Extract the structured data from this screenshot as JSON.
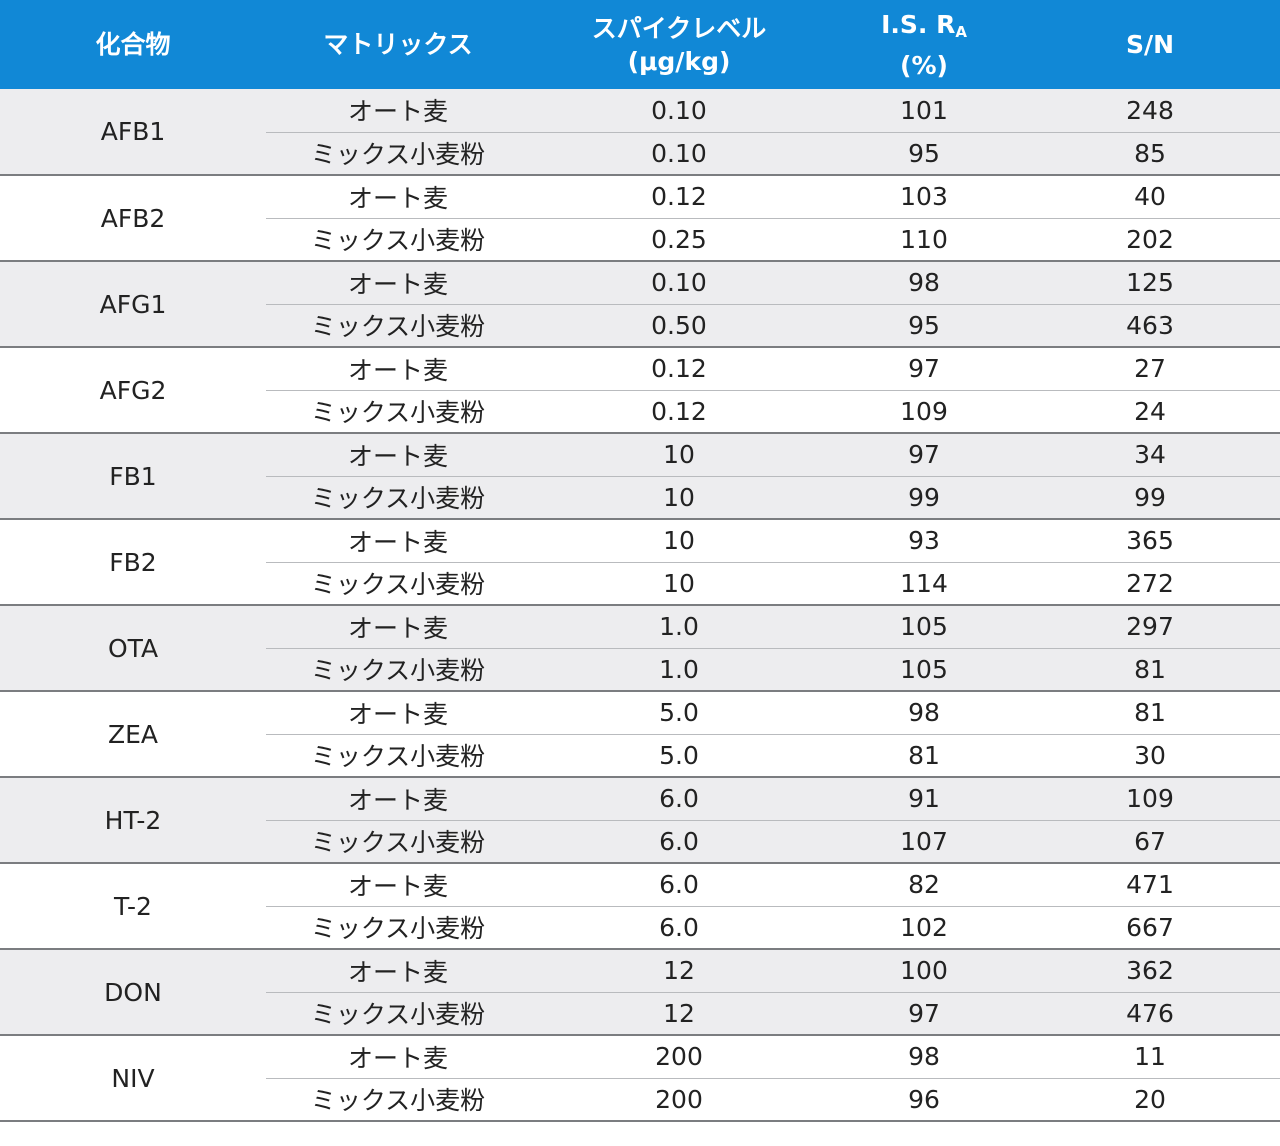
{
  "table": {
    "headers": {
      "compound": "化合物",
      "matrix": "マトリックス",
      "spike_level": "スパイクレベル",
      "spike_unit": "(μg/kg)",
      "is_ra": "I.S. R",
      "is_ra_sub": "A",
      "is_ra_unit": "(%)",
      "sn": "S/N"
    },
    "rows": [
      {
        "compound": "AFB1",
        "entries": [
          {
            "matrix": "オート麦",
            "spike": "0.10",
            "ra": "101",
            "sn": "248"
          },
          {
            "matrix": "ミックス小麦粉",
            "spike": "0.10",
            "ra": "95",
            "sn": "85"
          }
        ]
      },
      {
        "compound": "AFB2",
        "entries": [
          {
            "matrix": "オート麦",
            "spike": "0.12",
            "ra": "103",
            "sn": "40"
          },
          {
            "matrix": "ミックス小麦粉",
            "spike": "0.25",
            "ra": "110",
            "sn": "202"
          }
        ]
      },
      {
        "compound": "AFG1",
        "entries": [
          {
            "matrix": "オート麦",
            "spike": "0.10",
            "ra": "98",
            "sn": "125"
          },
          {
            "matrix": "ミックス小麦粉",
            "spike": "0.50",
            "ra": "95",
            "sn": "463"
          }
        ]
      },
      {
        "compound": "AFG2",
        "entries": [
          {
            "matrix": "オート麦",
            "spike": "0.12",
            "ra": "97",
            "sn": "27"
          },
          {
            "matrix": "ミックス小麦粉",
            "spike": "0.12",
            "ra": "109",
            "sn": "24"
          }
        ]
      },
      {
        "compound": "FB1",
        "entries": [
          {
            "matrix": "オート麦",
            "spike": "10",
            "ra": "97",
            "sn": "34"
          },
          {
            "matrix": "ミックス小麦粉",
            "spike": "10",
            "ra": "99",
            "sn": "99"
          }
        ]
      },
      {
        "compound": "FB2",
        "entries": [
          {
            "matrix": "オート麦",
            "spike": "10",
            "ra": "93",
            "sn": "365"
          },
          {
            "matrix": "ミックス小麦粉",
            "spike": "10",
            "ra": "114",
            "sn": "272"
          }
        ]
      },
      {
        "compound": "OTA",
        "entries": [
          {
            "matrix": "オート麦",
            "spike": "1.0",
            "ra": "105",
            "sn": "297"
          },
          {
            "matrix": "ミックス小麦粉",
            "spike": "1.0",
            "ra": "105",
            "sn": "81"
          }
        ]
      },
      {
        "compound": "ZEA",
        "entries": [
          {
            "matrix": "オート麦",
            "spike": "5.0",
            "ra": "98",
            "sn": "81"
          },
          {
            "matrix": "ミックス小麦粉",
            "spike": "5.0",
            "ra": "81",
            "sn": "30"
          }
        ]
      },
      {
        "compound": "HT-2",
        "entries": [
          {
            "matrix": "オート麦",
            "spike": "6.0",
            "ra": "91",
            "sn": "109"
          },
          {
            "matrix": "ミックス小麦粉",
            "spike": "6.0",
            "ra": "107",
            "sn": "67"
          }
        ]
      },
      {
        "compound": "T-2",
        "entries": [
          {
            "matrix": "オート麦",
            "spike": "6.0",
            "ra": "82",
            "sn": "471"
          },
          {
            "matrix": "ミックス小麦粉",
            "spike": "6.0",
            "ra": "102",
            "sn": "667"
          }
        ]
      },
      {
        "compound": "DON",
        "entries": [
          {
            "matrix": "オート麦",
            "spike": "12",
            "ra": "100",
            "sn": "362"
          },
          {
            "matrix": "ミックス小麦粉",
            "spike": "12",
            "ra": "97",
            "sn": "476"
          }
        ]
      },
      {
        "compound": "NIV",
        "entries": [
          {
            "matrix": "オート麦",
            "spike": "200",
            "ra": "98",
            "sn": "11"
          },
          {
            "matrix": "ミックス小麦粉",
            "spike": "200",
            "ra": "96",
            "sn": "20"
          }
        ]
      }
    ]
  },
  "colors": {
    "header_bg": "#1188d6",
    "header_text": "#ffffff",
    "shaded_row": "#ededef",
    "text": "#222222"
  }
}
